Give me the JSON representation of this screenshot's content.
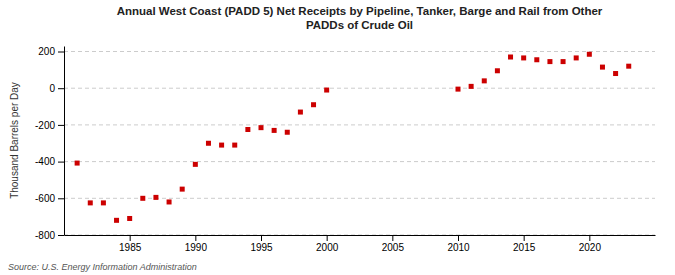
{
  "chart_data": {
    "type": "scatter",
    "title": "Annual West Coast (PADD 5) Net Receipts by Pipeline, Tanker, Barge and Rail from Other\nPADDs of Crude Oil",
    "ylabel": "Thousand Barrels per Day",
    "annotations": [
      "Source: U.S. Energy Information Administration"
    ],
    "x": [
      1981,
      1982,
      1983,
      1984,
      1985,
      1986,
      1987,
      1988,
      1989,
      1990,
      1991,
      1992,
      1993,
      1994,
      1995,
      1996,
      1997,
      1998,
      1999,
      2000,
      2010,
      2011,
      2012,
      2013,
      2014,
      2015,
      2016,
      2017,
      2018,
      2019,
      2020,
      2021,
      2022,
      2023
    ],
    "values": [
      -408,
      -625,
      -625,
      -720,
      -710,
      -600,
      -595,
      -620,
      -550,
      -415,
      -300,
      -310,
      -310,
      -225,
      -215,
      -230,
      -240,
      -130,
      -90,
      -10,
      -5,
      10,
      40,
      95,
      170,
      165,
      155,
      145,
      145,
      165,
      185,
      115,
      80,
      120
    ],
    "color": "#cc0000",
    "marker": "square",
    "xlim": [
      1980,
      2025
    ],
    "xticks": [
      1985,
      1990,
      1995,
      2000,
      2005,
      2010,
      2015,
      2020
    ],
    "ylim": [
      -800,
      230
    ],
    "yticks": [
      -800,
      -600,
      -400,
      -200,
      0,
      200
    ],
    "grid": "y"
  }
}
